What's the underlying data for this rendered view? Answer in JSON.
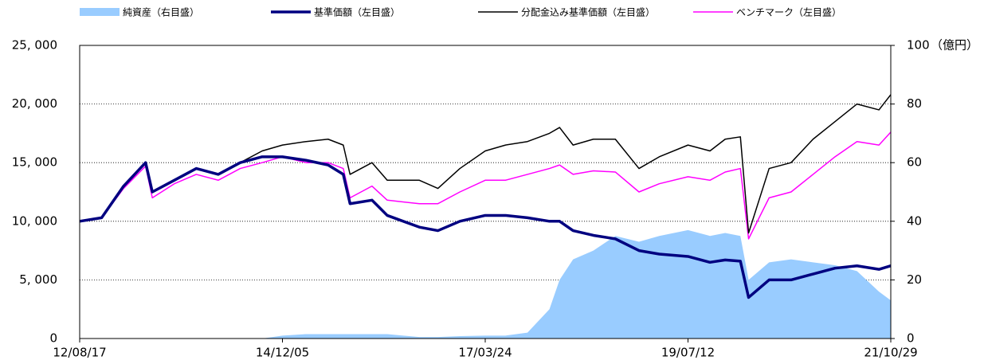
{
  "chart_data": {
    "type": "line",
    "x": [
      "12/08/17",
      "12/11/16",
      "13/02/15",
      "13/05/17",
      "13/06/14",
      "13/09/13",
      "13/12/13",
      "14/03/14",
      "14/06/13",
      "14/09/12",
      "14/12/05",
      "15/03/13",
      "15/06/12",
      "15/08/14",
      "15/09/11",
      "15/12/11",
      "16/02/12",
      "16/06/24",
      "16/09/09",
      "16/12/09",
      "17/03/24",
      "17/06/16",
      "17/09/15",
      "17/12/15",
      "18/01/26",
      "18/03/23",
      "18/06/15",
      "18/09/14",
      "18/12/21",
      "19/03/15",
      "19/07/12",
      "19/10/11",
      "19/12/13",
      "20/02/14",
      "20/03/19",
      "20/06/12",
      "20/09/11",
      "20/12/11",
      "21/03/12",
      "21/06/11",
      "21/09/10",
      "21/10/29"
    ],
    "xlim": [
      "12/08/17",
      "21/10/29"
    ],
    "xticks": [
      "12/08/17",
      "14/12/05",
      "17/03/24",
      "19/07/12",
      "21/10/29"
    ],
    "series": [
      {
        "name": "純資産（右目盛）",
        "color": "#99ccff",
        "axis": "y2",
        "kind": "area",
        "values": [
          0,
          0,
          0,
          0,
          0,
          0,
          0,
          0,
          0,
          0,
          1,
          1.5,
          1.5,
          1.5,
          1.5,
          1.5,
          1.5,
          0.5,
          0.5,
          0.8,
          1,
          1,
          2,
          10,
          20,
          27,
          30,
          35,
          33,
          35,
          37,
          35,
          36,
          35,
          20,
          26,
          27,
          26,
          25,
          23,
          16,
          13
        ]
      },
      {
        "name": "基準価額（左目盛）",
        "color": "#000080",
        "width": 3.5,
        "values": [
          10000,
          10300,
          13000,
          15000,
          12500,
          13500,
          14500,
          14000,
          15000,
          15500,
          15500,
          15200,
          14800,
          14000,
          11500,
          11800,
          10500,
          9500,
          9200,
          10000,
          10500,
          10500,
          10300,
          10000,
          10000,
          9200,
          8800,
          8500,
          7500,
          7200,
          7000,
          6500,
          6700,
          6600,
          3500,
          5000,
          5000,
          5500,
          6000,
          6200,
          5900,
          6200
        ]
      },
      {
        "name": "分配金込み基準価額（左目盛）",
        "color": "#000000",
        "width": 1.5,
        "values": [
          10000,
          10300,
          13000,
          15000,
          12500,
          13500,
          14500,
          14000,
          15000,
          16000,
          16500,
          16800,
          17000,
          16500,
          14000,
          15000,
          13500,
          13500,
          12800,
          14500,
          16000,
          16500,
          16800,
          17500,
          18000,
          16500,
          17000,
          17000,
          14500,
          15500,
          16500,
          16000,
          17000,
          17200,
          9000,
          14500,
          15000,
          17000,
          18500,
          20000,
          19500,
          20800
        ]
      },
      {
        "name": "ベンチマーク（左目盛）",
        "color": "#ff00ff",
        "width": 1.5,
        "values": [
          10000,
          10300,
          12800,
          14700,
          12000,
          13200,
          14000,
          13500,
          14500,
          15000,
          15500,
          15000,
          15000,
          14500,
          12000,
          13000,
          11800,
          11500,
          11500,
          12500,
          13500,
          13500,
          14000,
          14500,
          14800,
          14000,
          14300,
          14200,
          12500,
          13200,
          13800,
          13500,
          14200,
          14500,
          8500,
          12000,
          12500,
          14000,
          15500,
          16800,
          16500,
          17600
        ]
      }
    ],
    "ylim": [
      0,
      25000
    ],
    "yticks": [
      0,
      {
        "value": 5000,
        "label": "5, 000"
      },
      {
        "value": 10000,
        "label": "10, 000"
      },
      {
        "value": 15000,
        "label": "15, 000"
      },
      {
        "value": 20000,
        "label": "20, 000"
      },
      {
        "value": 25000,
        "label": "25, 000"
      }
    ],
    "y2lim": [
      0,
      100
    ],
    "y2ticks": [
      0,
      20,
      40,
      60,
      80,
      100
    ],
    "y2label": "（億円）",
    "grid": true
  }
}
